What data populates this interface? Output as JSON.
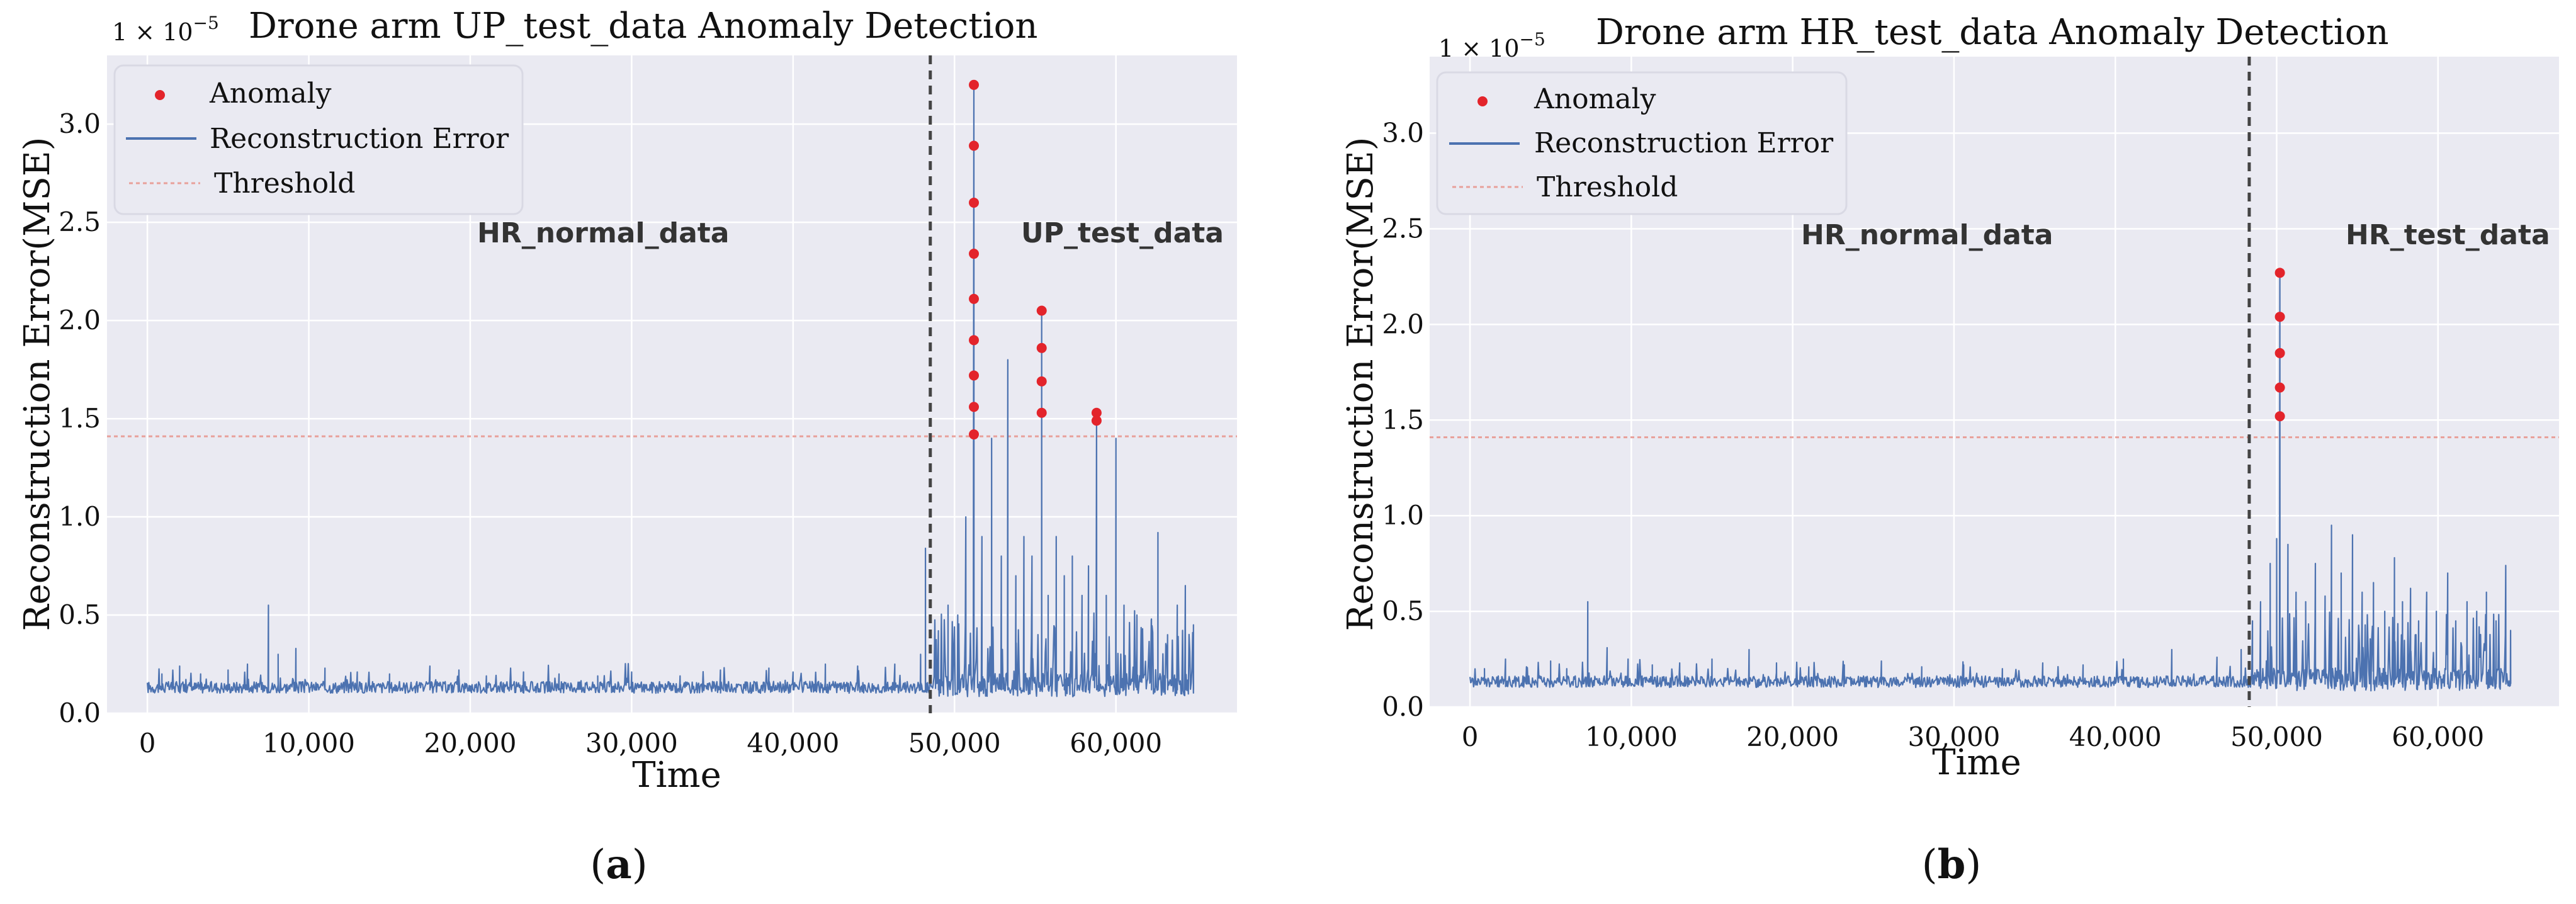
{
  "figure": {
    "panels": [
      {
        "letter": "a",
        "scale_label": "1 × 10",
        "scale_exp": "−5",
        "annotation_left": "HR_normal_data",
        "annotation_right": "UP_test_data"
      },
      {
        "letter": "b",
        "scale_label": "1 × 10",
        "scale_exp": "−5",
        "annotation_left": "HR_normal_data",
        "annotation_right": "HR_test_data"
      }
    ]
  },
  "colors": {
    "plot_bg": "#eaeaf2",
    "grid": "#ffffff",
    "series": "#4c72b0",
    "anomaly": "#e3242b",
    "threshold": "#e8a09a",
    "split": "#444444"
  },
  "chart_data": [
    {
      "type": "line",
      "title": "Drone arm UP_test_data Anomaly Detection",
      "xlabel": "Time",
      "ylabel": "Reconstruction Error(MSE)",
      "xlim": [
        -2500,
        67500
      ],
      "ylim": [
        0,
        3.35
      ],
      "xticks": [
        0,
        10000,
        20000,
        30000,
        40000,
        50000,
        60000
      ],
      "xtick_labels": [
        "0",
        "10,000",
        "20,000",
        "30,000",
        "40,000",
        "50,000",
        "60,000"
      ],
      "yticks": [
        0.0,
        0.5,
        1.0,
        1.5,
        2.0,
        2.5,
        3.0
      ],
      "ytick_labels": [
        "0.0",
        "0.5",
        "1.0",
        "1.5",
        "2.0",
        "2.5",
        "3.0"
      ],
      "threshold": 1.41,
      "split_x": 48500,
      "legend": [
        "Anomaly",
        "Reconstruction Error",
        "Threshold"
      ],
      "legend_position": "upper-left",
      "series": [
        {
          "name": "Reconstruction Error",
          "baseline": 0.12,
          "x_end": 64800,
          "spikes": [
            [
              900,
              0.2
            ],
            [
              2000,
              0.24
            ],
            [
              3300,
              0.2
            ],
            [
              5000,
              0.22
            ],
            [
              6200,
              0.25
            ],
            [
              7500,
              0.55
            ],
            [
              8100,
              0.3
            ],
            [
              9200,
              0.33
            ],
            [
              11000,
              0.23
            ],
            [
              13000,
              0.21
            ],
            [
              15000,
              0.2
            ],
            [
              17500,
              0.24
            ],
            [
              19300,
              0.22
            ],
            [
              21000,
              0.19
            ],
            [
              23300,
              0.21
            ],
            [
              25500,
              0.2
            ],
            [
              27900,
              0.19
            ],
            [
              30000,
              0.21
            ],
            [
              33000,
              0.19
            ],
            [
              35500,
              0.22
            ],
            [
              38500,
              0.23
            ],
            [
              40000,
              0.21
            ],
            [
              42000,
              0.25
            ],
            [
              44000,
              0.24
            ],
            [
              46300,
              0.25
            ],
            [
              47900,
              0.3
            ],
            [
              48200,
              0.84
            ],
            [
              49000,
              0.42
            ],
            [
              49600,
              0.55
            ],
            [
              50200,
              0.5
            ],
            [
              50700,
              1.0
            ],
            [
              51200,
              3.2
            ],
            [
              51700,
              0.9
            ],
            [
              52300,
              1.4
            ],
            [
              52900,
              0.8
            ],
            [
              53300,
              1.8
            ],
            [
              53800,
              0.7
            ],
            [
              54300,
              0.9
            ],
            [
              54800,
              0.8
            ],
            [
              55400,
              2.05
            ],
            [
              55800,
              0.6
            ],
            [
              56300,
              0.9
            ],
            [
              56800,
              0.7
            ],
            [
              57300,
              0.8
            ],
            [
              57900,
              0.6
            ],
            [
              58300,
              0.75
            ],
            [
              58800,
              1.5
            ],
            [
              59400,
              0.6
            ],
            [
              60000,
              1.4
            ],
            [
              60500,
              0.55
            ],
            [
              61300,
              0.5
            ],
            [
              62200,
              0.48
            ],
            [
              62600,
              0.92
            ],
            [
              63200,
              0.4
            ],
            [
              63800,
              0.55
            ],
            [
              64300,
              0.65
            ],
            [
              64800,
              0.45
            ]
          ]
        },
        {
          "name": "Anomaly",
          "points": [
            [
              51200,
              3.2
            ],
            [
              51200,
              2.89
            ],
            [
              51200,
              2.6
            ],
            [
              51200,
              2.34
            ],
            [
              51200,
              2.11
            ],
            [
              51200,
              1.9
            ],
            [
              51200,
              1.72
            ],
            [
              51200,
              1.56
            ],
            [
              51200,
              1.42
            ],
            [
              55400,
              2.05
            ],
            [
              55400,
              1.86
            ],
            [
              55400,
              1.69
            ],
            [
              55400,
              1.53
            ],
            [
              58800,
              1.53
            ],
            [
              58800,
              1.49
            ]
          ]
        },
        {
          "name": "Threshold",
          "value": 1.41
        }
      ]
    },
    {
      "type": "line",
      "title": "Drone arm HR_test_data Anomaly Detection",
      "xlabel": "Time",
      "ylabel": "Reconstruction Error(MSE)",
      "xlim": [
        -2500,
        67500
      ],
      "ylim": [
        0,
        3.4
      ],
      "xticks": [
        0,
        10000,
        20000,
        30000,
        40000,
        50000,
        60000
      ],
      "xtick_labels": [
        "0",
        "10,000",
        "20,000",
        "30,000",
        "40,000",
        "50,000",
        "60,000"
      ],
      "yticks": [
        0.0,
        0.5,
        1.0,
        1.5,
        2.0,
        2.5,
        3.0
      ],
      "ytick_labels": [
        "0.0",
        "0.5",
        "1.0",
        "1.5",
        "2.0",
        "2.5",
        "3.0"
      ],
      "threshold": 1.41,
      "split_x": 48300,
      "legend": [
        "Anomaly",
        "Reconstruction Error",
        "Threshold"
      ],
      "legend_position": "upper-left",
      "series": [
        {
          "name": "Reconstruction Error",
          "baseline": 0.12,
          "x_end": 64500,
          "spikes": [
            [
              900,
              0.2
            ],
            [
              2200,
              0.25
            ],
            [
              3500,
              0.21
            ],
            [
              5000,
              0.24
            ],
            [
              6000,
              0.2
            ],
            [
              7300,
              0.55
            ],
            [
              8500,
              0.31
            ],
            [
              9800,
              0.25
            ],
            [
              11300,
              0.22
            ],
            [
              13000,
              0.23
            ],
            [
              15000,
              0.25
            ],
            [
              17300,
              0.3
            ],
            [
              19000,
              0.23
            ],
            [
              21000,
              0.21
            ],
            [
              23200,
              0.22
            ],
            [
              25500,
              0.24
            ],
            [
              28000,
              0.21
            ],
            [
              30600,
              0.22
            ],
            [
              33000,
              0.2
            ],
            [
              35500,
              0.23
            ],
            [
              38000,
              0.22
            ],
            [
              40500,
              0.25
            ],
            [
              43500,
              0.3
            ],
            [
              46300,
              0.26
            ],
            [
              47800,
              0.3
            ],
            [
              48500,
              0.45
            ],
            [
              49000,
              0.55
            ],
            [
              49600,
              0.75
            ],
            [
              50000,
              0.88
            ],
            [
              50200,
              2.27
            ],
            [
              50700,
              0.85
            ],
            [
              51200,
              0.6
            ],
            [
              51800,
              0.55
            ],
            [
              52400,
              0.75
            ],
            [
              53000,
              0.58
            ],
            [
              53400,
              0.95
            ],
            [
              54000,
              0.7
            ],
            [
              54700,
              0.9
            ],
            [
              55300,
              0.6
            ],
            [
              56000,
              0.65
            ],
            [
              56700,
              0.5
            ],
            [
              57300,
              0.78
            ],
            [
              57800,
              0.55
            ],
            [
              58300,
              0.62
            ],
            [
              58800,
              0.45
            ],
            [
              59300,
              0.6
            ],
            [
              59900,
              0.5
            ],
            [
              60600,
              0.7
            ],
            [
              61100,
              0.45
            ],
            [
              61800,
              0.55
            ],
            [
              62400,
              0.5
            ],
            [
              63000,
              0.6
            ],
            [
              63600,
              0.45
            ],
            [
              64200,
              0.74
            ],
            [
              64500,
              0.4
            ]
          ]
        },
        {
          "name": "Anomaly",
          "points": [
            [
              50200,
              2.27
            ],
            [
              50200,
              2.04
            ],
            [
              50200,
              1.85
            ],
            [
              50200,
              1.67
            ],
            [
              50200,
              1.52
            ]
          ]
        },
        {
          "name": "Threshold",
          "value": 1.41
        }
      ]
    }
  ]
}
